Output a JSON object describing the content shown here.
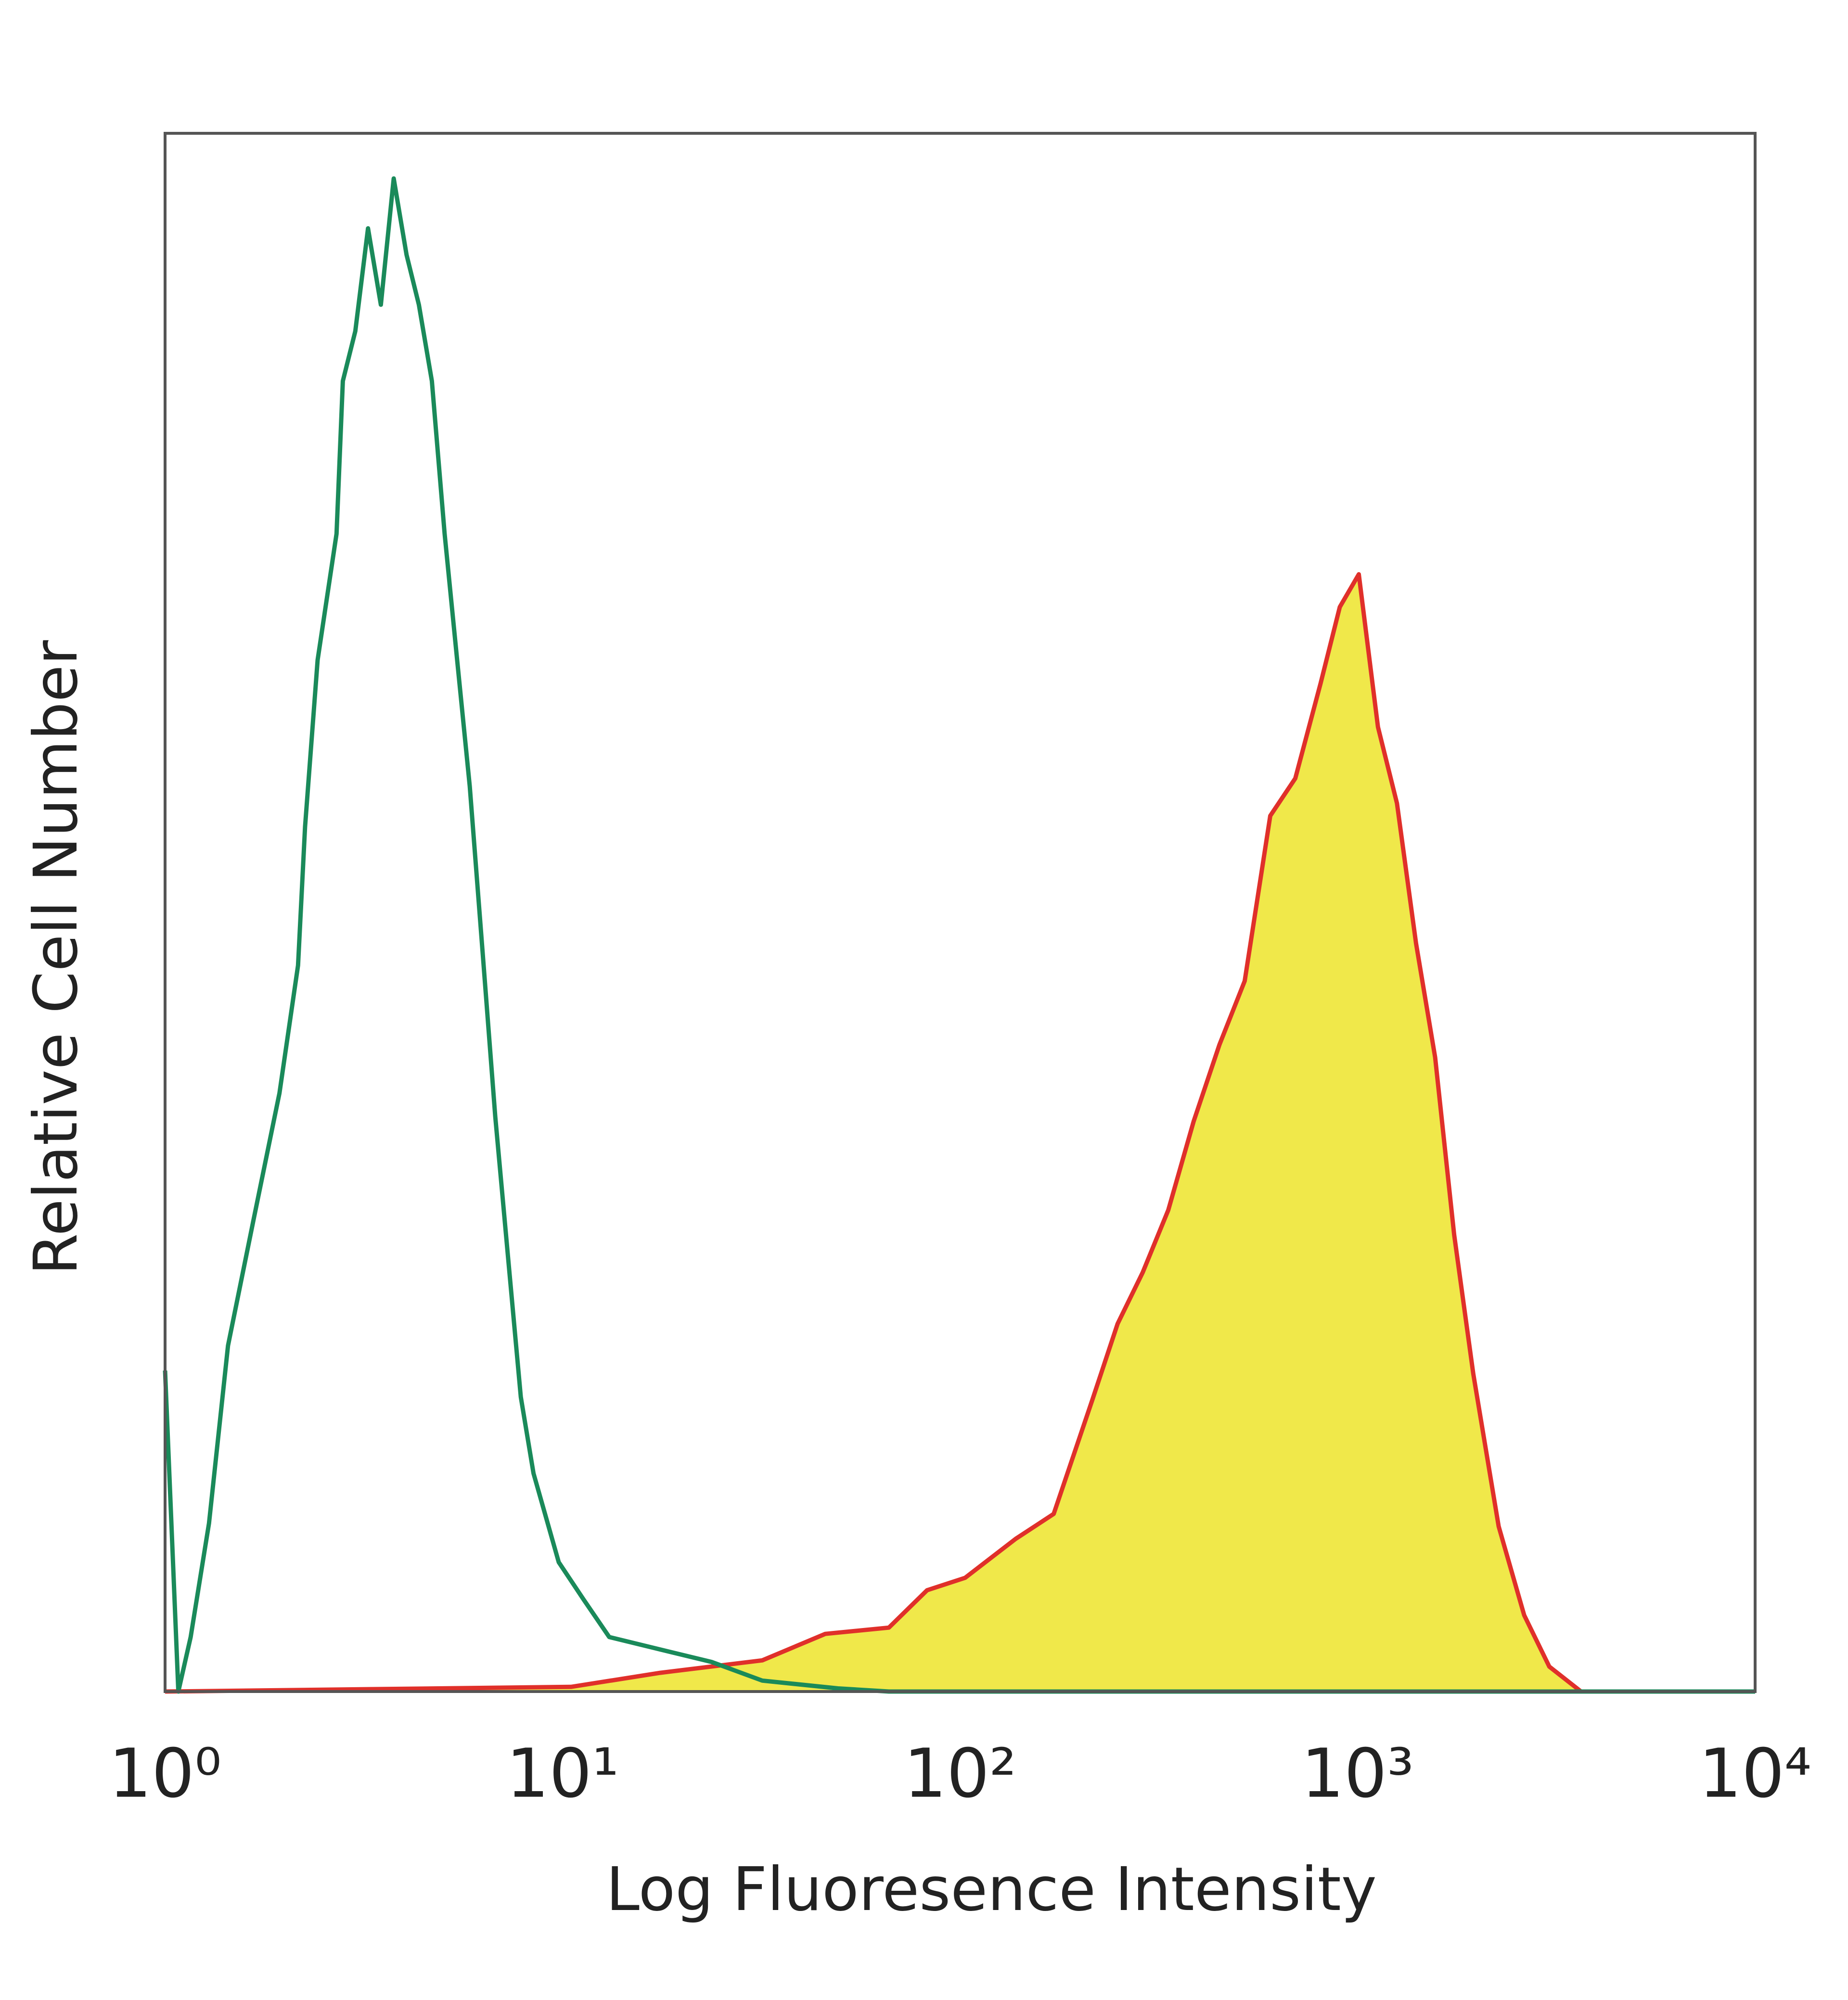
{
  "chart_data": {
    "type": "line",
    "xlabel": "Log Fluoresence Intensity",
    "ylabel": "Relative Cell Number",
    "log_x": true,
    "xlim": [
      1,
      10000
    ],
    "ylim": [
      0,
      100
    ],
    "xticks": [
      {
        "value": 1,
        "label": "10⁰"
      },
      {
        "value": 10,
        "label": "10¹"
      },
      {
        "value": 100,
        "label": "10²"
      },
      {
        "value": 1000,
        "label": "10³"
      },
      {
        "value": 10000,
        "label": "10⁴"
      }
    ],
    "series": [
      {
        "color": "#e0302a",
        "fill": "#f0e84a",
        "x": [
          1,
          10.5,
          17.6,
          31.8,
          45.8,
          66.2,
          82.6,
          103,
          138,
          172,
          215,
          249,
          288,
          334,
          387,
          449,
          520,
          603,
          697,
          807,
          902,
          1007,
          1125,
          1256,
          1403,
          1567,
          1750,
          1954,
          2264,
          2624,
          3035,
          3648,
          10000
        ],
        "values": [
          0,
          0.3,
          1.2,
          2.0,
          3.7,
          4.1,
          6.5,
          7.3,
          9.8,
          11.4,
          18.7,
          23.6,
          26.9,
          30.9,
          36.6,
          41.5,
          45.6,
          56.2,
          58.6,
          64.7,
          69.6,
          71.7,
          61.9,
          57.0,
          48.0,
          40.7,
          29.3,
          20.4,
          10.6,
          4.9,
          1.6,
          0,
          0
        ]
      },
      {
        "color": "#1a8a5a",
        "x": [
          1,
          1.08,
          1.16,
          1.29,
          1.44,
          1.67,
          1.94,
          2.16,
          2.25,
          2.42,
          2.7,
          2.8,
          3.01,
          3.24,
          3.49,
          3.76,
          4.05,
          4.35,
          4.69,
          5.05,
          5.43,
          5.84,
          6.29,
          6.77,
          7.29,
          7.85,
          8.45,
          9.78,
          11.3,
          13.1,
          17.6,
          23.7,
          31.8,
          49.3,
          66.2,
          10000
        ],
        "values": [
          20.6,
          0,
          3.5,
          10.8,
          22.2,
          30.3,
          38.4,
          46.6,
          55.5,
          66.2,
          74.3,
          84.1,
          87.3,
          93.9,
          89.0,
          97.1,
          92.2,
          89.0,
          84.1,
          74.3,
          66.2,
          58.1,
          47.5,
          36.9,
          27.9,
          18.9,
          14.0,
          8.3,
          5.9,
          3.5,
          2.7,
          1.9,
          0.7,
          0.2,
          0,
          0
        ]
      }
    ]
  }
}
